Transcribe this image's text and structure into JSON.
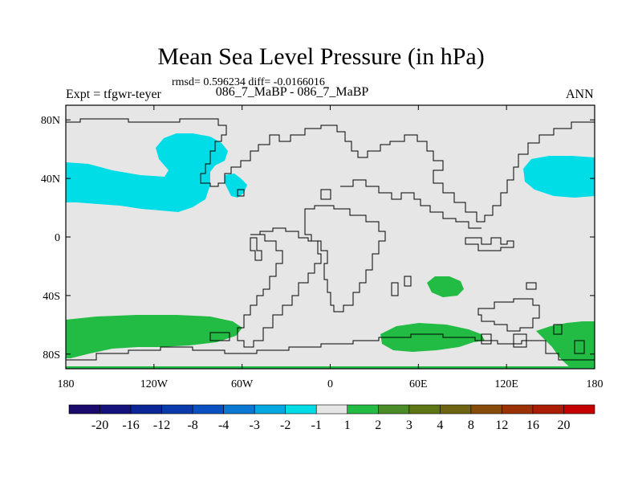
{
  "title": "Mean Sea Level Pressure (in hPa)",
  "stats": "rmsd= 0.596234 diff= -0.0166016",
  "expt_label": "086_7_MaBP - 086_7_MaBP",
  "left_label": "Expt = tfgwr-teyer",
  "right_label": "ANN",
  "map": {
    "lon_range": [
      -180,
      180
    ],
    "lat_range": [
      -90,
      90
    ],
    "xticks": [
      "180",
      "120W",
      "60W",
      "0",
      "60E",
      "120E",
      "180"
    ],
    "yticks": [
      "80N",
      "40N",
      "0",
      "40S",
      "80S"
    ],
    "background_color": "#e6e6e6",
    "colors": {
      "negative_light": "#00dde6",
      "positive_light": "#22bb44"
    }
  },
  "colorbar": {
    "colors": [
      "#1a0a6e",
      "#15127e",
      "#0a2596",
      "#0a3aac",
      "#0a50c0",
      "#0a78d2",
      "#05a8e0",
      "#00dde6",
      "#e6e6e6",
      "#22bb44",
      "#4a8c28",
      "#5d7514",
      "#6e6414",
      "#874b0a",
      "#9b3206",
      "#ab1c04",
      "#c40000"
    ],
    "labels": [
      "-20",
      "-16",
      "-12",
      "-8",
      "-4",
      "-3",
      "-2",
      "-1",
      "1",
      "2",
      "3",
      "4",
      "8",
      "12",
      "16",
      "20"
    ]
  }
}
